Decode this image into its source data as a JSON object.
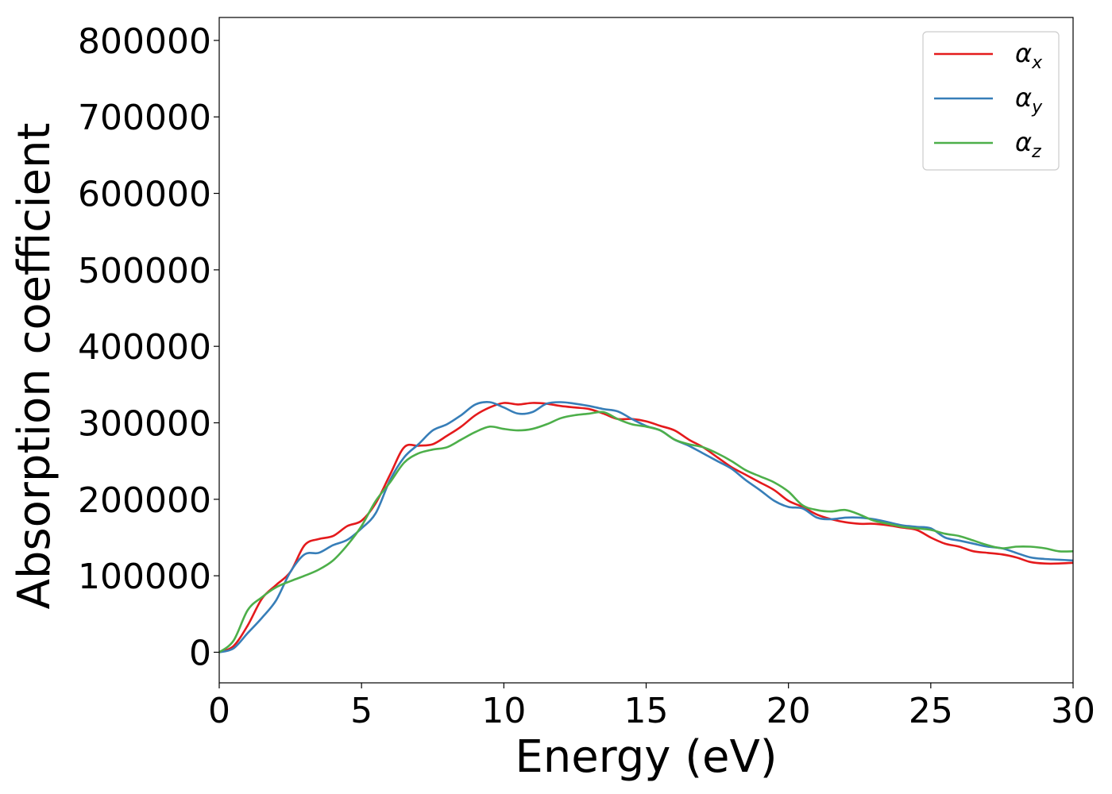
{
  "chart_data": {
    "type": "line",
    "title": "",
    "xlabel": "Energy (eV)",
    "ylabel": "Absorption coefficient",
    "xlim": [
      0,
      30
    ],
    "ylim": [
      -40000,
      830000
    ],
    "xticks": [
      0,
      5,
      10,
      15,
      20,
      25,
      30
    ],
    "yticks": [
      0,
      100000,
      200000,
      300000,
      400000,
      500000,
      600000,
      700000,
      800000
    ],
    "xtick_labels": [
      "0",
      "5",
      "10",
      "15",
      "20",
      "25",
      "30"
    ],
    "ytick_labels": [
      "0",
      "100000",
      "200000",
      "300000",
      "400000",
      "500000",
      "600000",
      "700000",
      "800000"
    ],
    "grid": false,
    "legend_position": "top-right",
    "series": [
      {
        "name": "α_x",
        "legend_base": "α",
        "legend_sub": "x",
        "color": "#e41a1c",
        "x": [
          0,
          0.5,
          1.0,
          1.5,
          2.0,
          2.5,
          3.0,
          3.5,
          4.0,
          4.5,
          5.0,
          5.5,
          6.0,
          6.5,
          7.0,
          7.5,
          8.0,
          8.5,
          9.0,
          9.5,
          10.0,
          10.5,
          11.0,
          11.5,
          12.0,
          12.5,
          13.0,
          13.5,
          14.0,
          14.5,
          15.0,
          15.5,
          16.0,
          16.5,
          17.0,
          17.5,
          18.0,
          18.5,
          19.0,
          19.5,
          20.0,
          20.5,
          21.0,
          21.5,
          22.0,
          22.5,
          23.0,
          23.5,
          24.0,
          24.5,
          25.0,
          25.5,
          26.0,
          26.5,
          27.0,
          27.5,
          28.0,
          28.5,
          29.0,
          29.5,
          30.0
        ],
        "y": [
          0,
          8000,
          35000,
          70000,
          88000,
          105000,
          140000,
          148000,
          152000,
          165000,
          172000,
          195000,
          232000,
          268000,
          270000,
          272000,
          283000,
          295000,
          310000,
          320000,
          326000,
          324000,
          326000,
          325000,
          322000,
          320000,
          318000,
          312000,
          305000,
          305000,
          302000,
          296000,
          290000,
          278000,
          268000,
          255000,
          242000,
          232000,
          222000,
          212000,
          198000,
          190000,
          180000,
          174000,
          170000,
          168000,
          168000,
          166000,
          163000,
          160000,
          150000,
          142000,
          138000,
          132000,
          130000,
          128000,
          124000,
          118000,
          116000,
          116000,
          117000
        ]
      },
      {
        "name": "α_y",
        "legend_base": "α",
        "legend_sub": "y",
        "color": "#377eb8",
        "x": [
          0,
          0.5,
          1.0,
          1.5,
          2.0,
          2.5,
          3.0,
          3.5,
          4.0,
          4.5,
          5.0,
          5.5,
          6.0,
          6.5,
          7.0,
          7.5,
          8.0,
          8.5,
          9.0,
          9.5,
          10.0,
          10.5,
          11.0,
          11.5,
          12.0,
          12.5,
          13.0,
          13.5,
          14.0,
          14.5,
          15.0,
          15.5,
          16.0,
          16.5,
          17.0,
          17.5,
          18.0,
          18.5,
          19.0,
          19.5,
          20.0,
          20.5,
          21.0,
          21.5,
          22.0,
          22.5,
          23.0,
          23.5,
          24.0,
          24.5,
          25.0,
          25.5,
          26.0,
          26.5,
          27.0,
          27.5,
          28.0,
          28.5,
          29.0,
          29.5,
          30.0
        ],
        "y": [
          0,
          5000,
          25000,
          45000,
          68000,
          105000,
          128000,
          130000,
          140000,
          147000,
          162000,
          182000,
          225000,
          255000,
          272000,
          290000,
          298000,
          310000,
          324000,
          327000,
          320000,
          312000,
          314000,
          325000,
          327000,
          325000,
          322000,
          318000,
          315000,
          305000,
          296000,
          290000,
          278000,
          270000,
          260000,
          250000,
          240000,
          225000,
          212000,
          198000,
          190000,
          188000,
          176000,
          174000,
          176000,
          176000,
          174000,
          170000,
          166000,
          164000,
          162000,
          150000,
          146000,
          142000,
          138000,
          136000,
          130000,
          124000,
          122000,
          121000,
          120000
        ]
      },
      {
        "name": "α_z",
        "legend_base": "α",
        "legend_sub": "z",
        "color": "#4daf4a",
        "x": [
          0,
          0.5,
          1.0,
          1.5,
          2.0,
          2.5,
          3.0,
          3.5,
          4.0,
          4.5,
          5.0,
          5.5,
          6.0,
          6.5,
          7.0,
          7.5,
          8.0,
          8.5,
          9.0,
          9.5,
          10.0,
          10.5,
          11.0,
          11.5,
          12.0,
          12.5,
          13.0,
          13.5,
          14.0,
          14.5,
          15.0,
          15.5,
          16.0,
          16.5,
          17.0,
          17.5,
          18.0,
          18.5,
          19.0,
          19.5,
          20.0,
          20.5,
          21.0,
          21.5,
          22.0,
          22.5,
          23.0,
          23.5,
          24.0,
          24.5,
          25.0,
          25.5,
          26.0,
          26.5,
          27.0,
          27.5,
          28.0,
          28.5,
          29.0,
          29.5,
          30.0
        ],
        "y": [
          0,
          15000,
          55000,
          72000,
          85000,
          93000,
          100000,
          108000,
          120000,
          140000,
          165000,
          198000,
          222000,
          248000,
          260000,
          265000,
          268000,
          278000,
          288000,
          295000,
          292000,
          290000,
          292000,
          298000,
          306000,
          310000,
          312000,
          314000,
          305000,
          298000,
          295000,
          290000,
          278000,
          272000,
          268000,
          260000,
          250000,
          238000,
          230000,
          222000,
          210000,
          192000,
          186000,
          184000,
          186000,
          180000,
          172000,
          168000,
          164000,
          162000,
          160000,
          155000,
          152000,
          146000,
          140000,
          136000,
          138000,
          138000,
          136000,
          132000,
          132000
        ]
      }
    ]
  }
}
